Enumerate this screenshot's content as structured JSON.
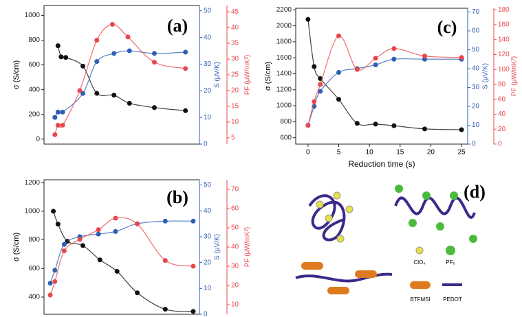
{
  "chart_data": [
    {
      "type": "line",
      "title": "(a)",
      "ylabel": "σ (S/cm)",
      "y2label": "S (μV/K)",
      "y3label": "PF (μW/mK²)",
      "xlim": [
        0,
        10
      ],
      "ylim": [
        -40,
        1080
      ],
      "yticks": [
        0,
        200,
        400,
        600,
        800,
        1000
      ],
      "y2lim": [
        0,
        52
      ],
      "y2ticks": [
        0,
        10,
        20,
        30,
        40,
        50
      ],
      "y3lim": [
        3,
        47
      ],
      "y3ticks": [
        5,
        10,
        15,
        20,
        25,
        30,
        35,
        40,
        45
      ],
      "series": [
        {
          "name": "σ",
          "color": "#111111",
          "axis": "y",
          "x": [
            0.9,
            1.1,
            1.4,
            2.5,
            3.4,
            4.5,
            5.5,
            7.1,
            9.1
          ],
          "values": [
            755,
            665,
            660,
            590,
            370,
            355,
            290,
            255,
            230
          ]
        },
        {
          "name": "S",
          "color": "#2f5fb3",
          "axis": "y2",
          "x": [
            0.7,
            0.9,
            1.2,
            2.5,
            3.4,
            4.5,
            5.5,
            7.1,
            9.1
          ],
          "values": [
            10,
            12,
            12,
            19,
            31,
            34,
            35,
            34,
            34.5
          ]
        },
        {
          "name": "PF",
          "color": "#e8474b",
          "axis": "y3",
          "x": [
            0.7,
            0.9,
            1.2,
            2.3,
            3.4,
            4.4,
            5.4,
            7.1,
            9.1
          ],
          "values": [
            6,
            9,
            9,
            20,
            36,
            41,
            37,
            29,
            27
          ]
        }
      ]
    },
    {
      "type": "line",
      "title": "(b)",
      "ylabel": "σ (S/cm)",
      "y2label": "S (μV/K)",
      "y3label": "PF (μW/mK²)",
      "xlim": [
        0,
        10
      ],
      "ylim": [
        280,
        1220
      ],
      "yticks": [
        400,
        600,
        800,
        1000,
        1200
      ],
      "y2lim": [
        0,
        52
      ],
      "y2ticks": [
        0,
        10,
        20,
        30,
        40,
        50
      ],
      "y3lim": [
        5,
        75
      ],
      "y3ticks": [
        10,
        20,
        30,
        40,
        50,
        60,
        70
      ],
      "series": [
        {
          "name": "σ",
          "color": "#111111",
          "axis": "y",
          "x": [
            0.6,
            0.9,
            1.5,
            2.5,
            3.6,
            4.7,
            6.0,
            7.8,
            9.6
          ],
          "values": [
            1000,
            910,
            790,
            760,
            660,
            580,
            430,
            315,
            300
          ]
        },
        {
          "name": "S",
          "color": "#2f5fb3",
          "axis": "y2",
          "x": [
            0.4,
            0.7,
            1.3,
            2.3,
            3.5,
            4.6,
            6.0,
            7.8,
            9.6
          ],
          "values": [
            12,
            17,
            27,
            30,
            31,
            32,
            35,
            36,
            36
          ]
        },
        {
          "name": "PF",
          "color": "#e8474b",
          "axis": "y3",
          "x": [
            0.4,
            0.7,
            1.3,
            2.3,
            3.5,
            4.6,
            6.0,
            7.8,
            9.6
          ],
          "values": [
            15,
            22,
            38,
            44,
            49,
            55,
            52,
            33,
            30
          ]
        }
      ]
    },
    {
      "type": "line",
      "title": "(c)",
      "xlabel": "Reduction time (s)",
      "ylabel": "σ (S/cm)",
      "y2label": "S (μV/K)",
      "y3label": "PF (μW/mK²)",
      "xlim": [
        -2,
        26
      ],
      "xticks": [
        0,
        5,
        10,
        15,
        20,
        25
      ],
      "ylim": [
        520,
        2220
      ],
      "yticks": [
        600,
        800,
        1000,
        1200,
        1400,
        1600,
        1800,
        2000,
        2200
      ],
      "y2lim": [
        0,
        72
      ],
      "y2ticks": [
        0,
        10,
        20,
        30,
        40,
        50,
        60,
        70
      ],
      "y3lim": [
        0,
        182
      ],
      "y3ticks": [
        0,
        20,
        40,
        60,
        80,
        100,
        120,
        140,
        160,
        180
      ],
      "series": [
        {
          "name": "σ",
          "color": "#111111",
          "axis": "y",
          "x": [
            0,
            1,
            2,
            5,
            8,
            11,
            14,
            19,
            25
          ],
          "values": [
            2080,
            1490,
            1340,
            1080,
            780,
            770,
            750,
            710,
            700
          ]
        },
        {
          "name": "S",
          "color": "#2f5fb3",
          "axis": "y2",
          "x": [
            0,
            1,
            2,
            5,
            8,
            11,
            14,
            19,
            25
          ],
          "values": [
            10,
            20,
            28,
            38,
            40,
            42,
            45,
            45,
            45
          ]
        },
        {
          "name": "PF",
          "color": "#e8474b",
          "axis": "y3",
          "x": [
            0,
            1,
            2,
            5,
            8,
            11,
            14,
            19,
            25
          ],
          "values": [
            25,
            57,
            80,
            145,
            100,
            115,
            128,
            118,
            116
          ]
        }
      ]
    }
  ],
  "diagram": {
    "title": "(d)",
    "labels": [
      "ClO₄",
      "PF₆",
      "BTFMSI",
      "PEDOT"
    ]
  }
}
